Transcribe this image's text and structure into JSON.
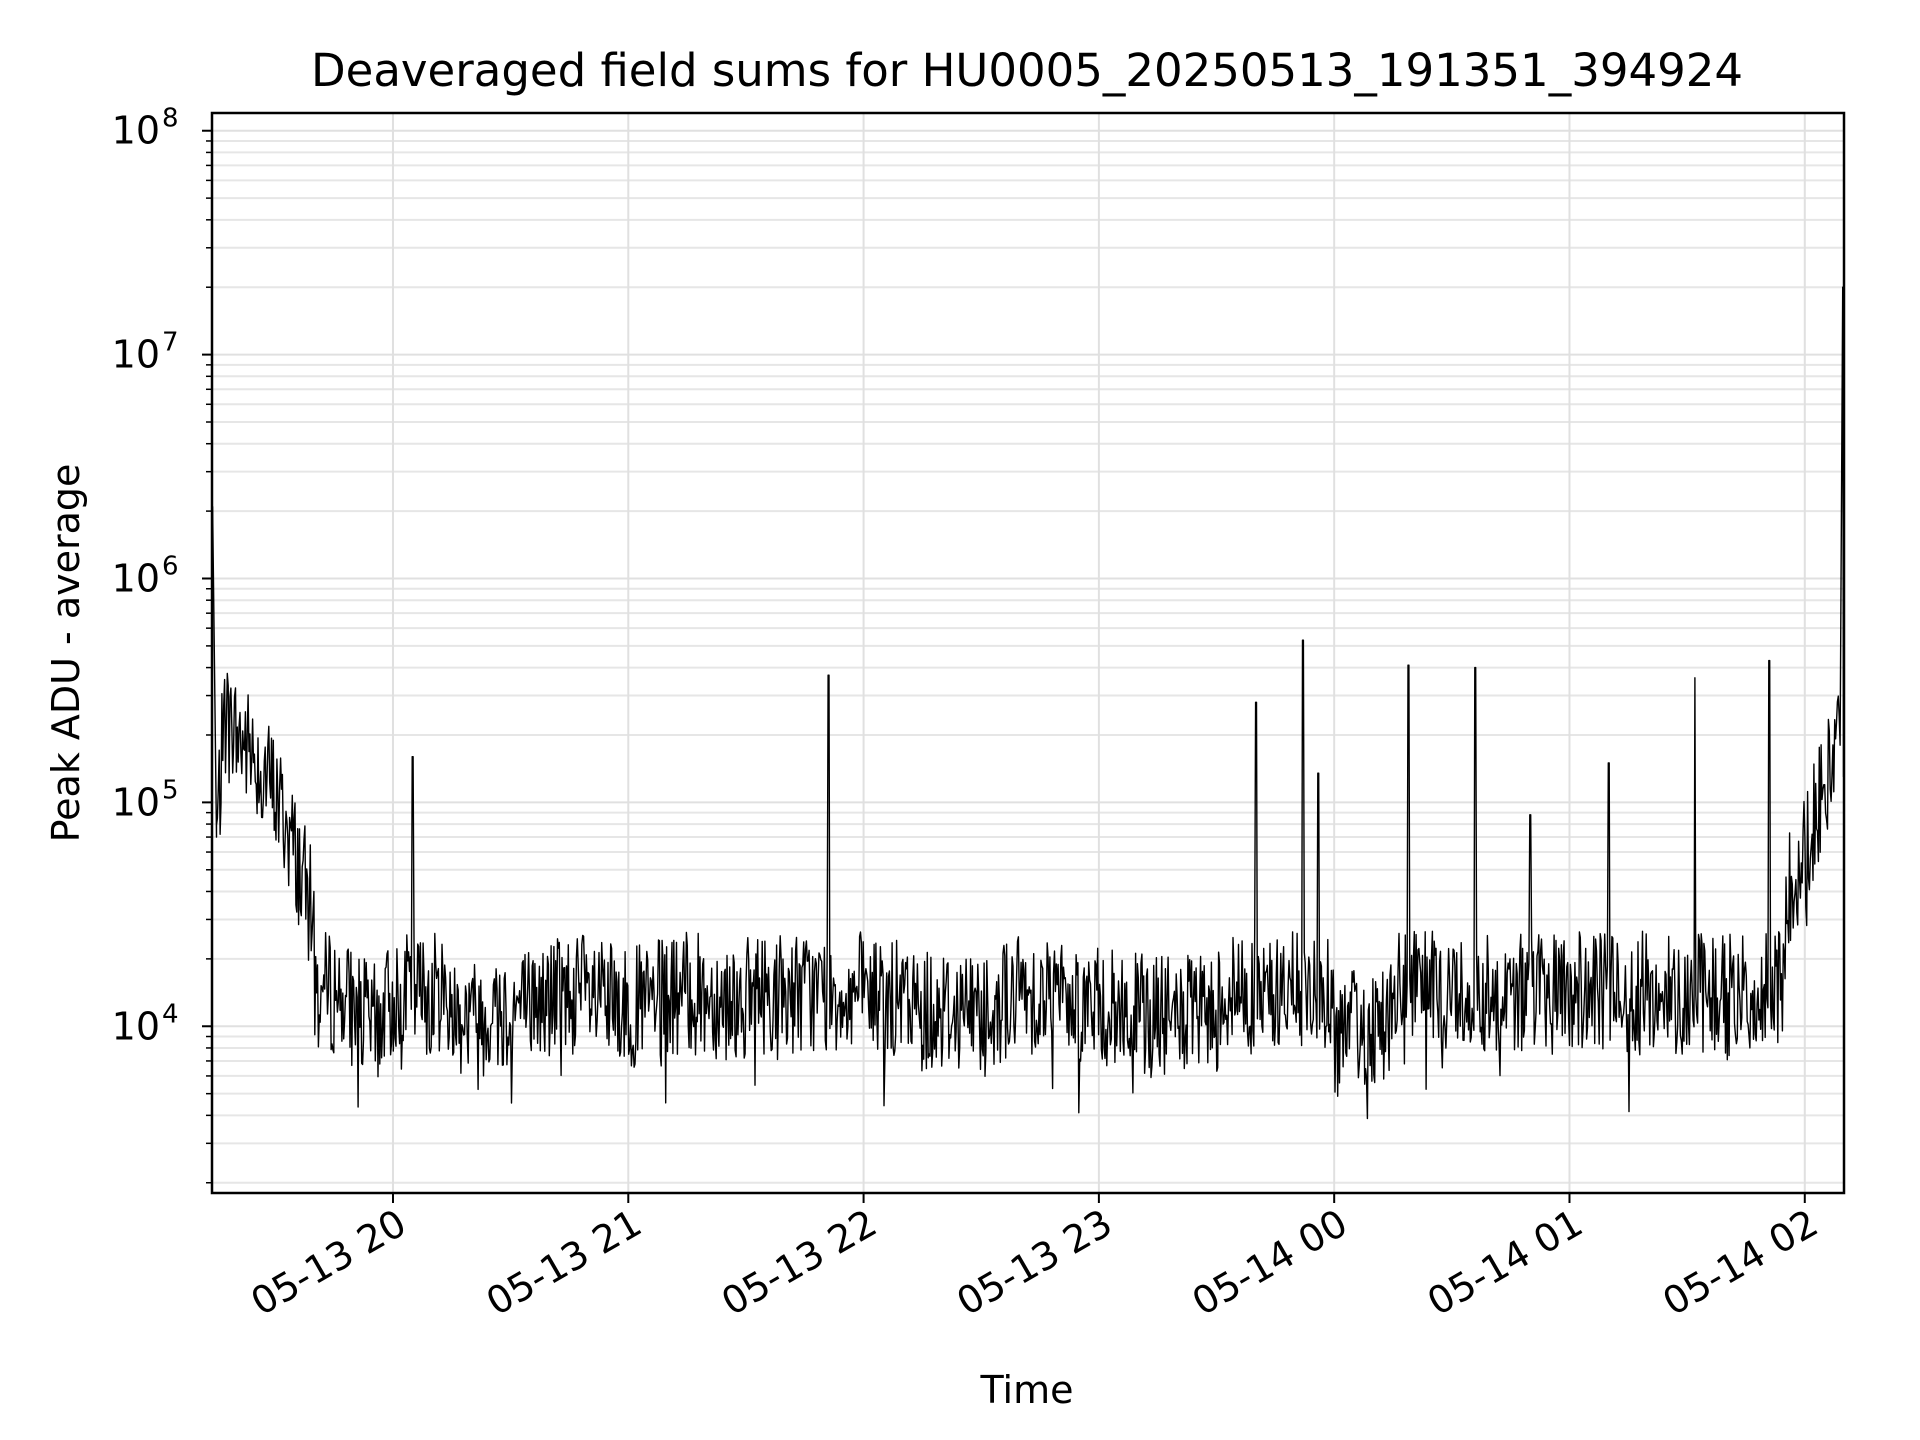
{
  "chart_data": {
    "type": "line",
    "title": "Deaveraged field sums for HU0005_20250513_191351_394924",
    "xlabel": "Time",
    "ylabel": "Peak ADU - average",
    "yscale": "log",
    "ylim": [
      1800,
      120000000
    ],
    "xlim": [
      "2025-05-13 19:13:51",
      "2025-05-14 02:10:00"
    ],
    "grid": true,
    "x_ticks": [
      "05-13 20",
      "05-13 21",
      "05-13 22",
      "05-13 23",
      "05-14 00",
      "05-14 01",
      "05-14 02"
    ],
    "y_ticks": [
      {
        "base": "10",
        "exp": "4",
        "value": 10000
      },
      {
        "base": "10",
        "exp": "5",
        "value": 100000
      },
      {
        "base": "10",
        "exp": "6",
        "value": 1000000
      },
      {
        "base": "10",
        "exp": "7",
        "value": 10000000
      },
      {
        "base": "10",
        "exp": "8",
        "value": 100000000
      }
    ],
    "series": [
      {
        "color": "#000000",
        "points": [
          [
            "2025-05-13 19:14",
            2100000
          ],
          [
            "2025-05-13 19:15",
            70000
          ],
          [
            "2025-05-13 19:17",
            240000
          ],
          [
            "2025-05-13 19:20",
            200000
          ],
          [
            "2025-05-13 19:25",
            160000
          ],
          [
            "2025-05-13 19:30",
            110000
          ],
          [
            "2025-05-13 19:35",
            60000
          ],
          [
            "2025-05-13 19:40",
            30000
          ],
          [
            "2025-05-13 19:45",
            15000
          ],
          [
            "2025-05-13 19:50",
            12000
          ],
          [
            "2025-05-13 19:55",
            10000
          ],
          [
            "2025-05-13 20:00",
            13000
          ],
          [
            "2025-05-13 20:05",
            160000
          ],
          [
            "2025-05-13 20:10",
            30000
          ],
          [
            "2025-05-13 20:15",
            12000
          ],
          [
            "2025-05-13 20:20",
            11000
          ],
          [
            "2025-05-13 20:30",
            12000
          ],
          [
            "2025-05-13 20:40",
            13000
          ],
          [
            "2025-05-13 20:45",
            18000
          ],
          [
            "2025-05-13 20:50",
            13000
          ],
          [
            "2025-05-13 21:00",
            12000
          ],
          [
            "2025-05-13 21:15",
            14000
          ],
          [
            "2025-05-13 21:30",
            13000
          ],
          [
            "2025-05-13 21:40",
            18000
          ],
          [
            "2025-05-13 21:51",
            370000
          ],
          [
            "2025-05-13 22:00",
            14000
          ],
          [
            "2025-05-13 22:15",
            12000
          ],
          [
            "2025-05-13 22:30",
            12000
          ],
          [
            "2025-05-13 22:45",
            15000
          ],
          [
            "2025-05-13 23:00",
            12000
          ],
          [
            "2025-05-13 23:15",
            11000
          ],
          [
            "2025-05-13 23:30",
            11000
          ],
          [
            "2025-05-13 23:40",
            280000
          ],
          [
            "2025-05-13 23:45",
            12000
          ],
          [
            "2025-05-13 23:52",
            530000
          ],
          [
            "2025-05-13 23:56",
            135000
          ],
          [
            "2025-05-14 00:00",
            9000
          ],
          [
            "2025-05-14 00:15",
            11000
          ],
          [
            "2025-05-14 00:19",
            410000
          ],
          [
            "2025-05-14 00:30",
            14000
          ],
          [
            "2025-05-14 00:36",
            400000
          ],
          [
            "2025-05-14 00:45",
            15000
          ],
          [
            "2025-05-14 00:50",
            88000
          ],
          [
            "2025-05-14 01:00",
            16000
          ],
          [
            "2025-05-14 01:10",
            150000
          ],
          [
            "2025-05-14 01:20",
            15000
          ],
          [
            "2025-05-14 01:32",
            360000
          ],
          [
            "2025-05-14 01:40",
            11000
          ],
          [
            "2025-05-14 01:51",
            430000
          ],
          [
            "2025-05-14 01:55",
            40000
          ],
          [
            "2025-05-14 02:00",
            60000
          ],
          [
            "2025-05-14 02:05",
            120000
          ],
          [
            "2025-05-14 02:09",
            180000
          ],
          [
            "2025-05-14 02:10",
            20000000
          ]
        ]
      }
    ]
  }
}
